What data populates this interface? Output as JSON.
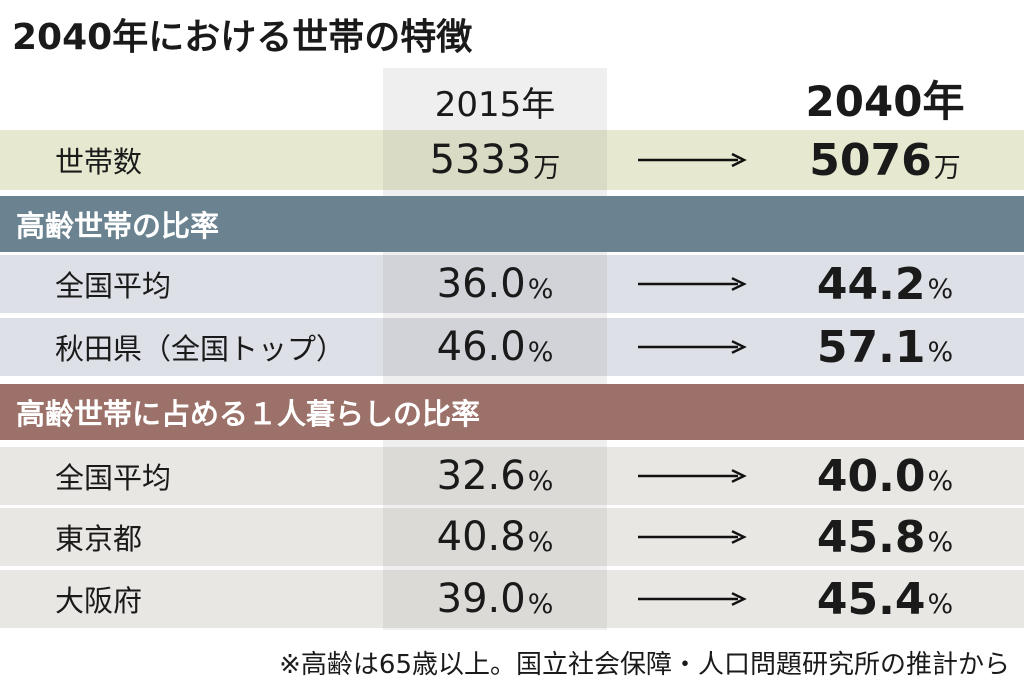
{
  "title": "2040年における世帯の特徴",
  "columns": [
    "2015年",
    "2040年"
  ],
  "households": {
    "label": "世帯数",
    "v2015": "5333",
    "v2040": "5076",
    "unit": "万"
  },
  "sections": [
    {
      "heading": "高齢世帯の比率",
      "rows": [
        {
          "label": "全国平均",
          "v2015": "36.0",
          "v2040": "44.2",
          "unit": "%"
        },
        {
          "label": "秋田県（全国トップ）",
          "v2015": "46.0",
          "v2040": "57.1",
          "unit": "%"
        }
      ]
    },
    {
      "heading": "高齢世帯に占める１人暮らしの比率",
      "rows": [
        {
          "label": "全国平均",
          "v2015": "32.6",
          "v2040": "40.0",
          "unit": "%"
        },
        {
          "label": "東京都",
          "v2015": "40.8",
          "v2040": "45.8",
          "unit": "%"
        },
        {
          "label": "大阪府",
          "v2015": "39.0",
          "v2040": "45.4",
          "unit": "%"
        }
      ]
    }
  ],
  "note": "※高齢は65歳以上。国立社会保障・人口問題研究所の推計から"
}
